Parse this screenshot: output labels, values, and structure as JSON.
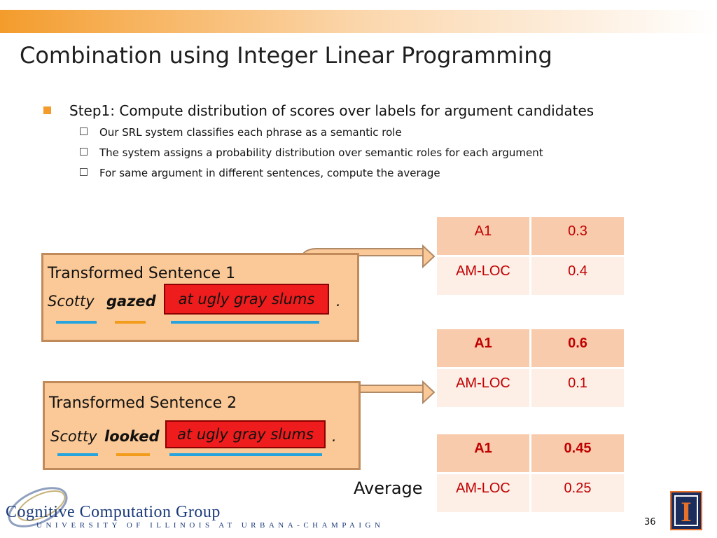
{
  "title": "Combination using Integer Linear Programming",
  "main_bullet": "Step1: Compute distribution of scores over labels for argument candidates",
  "sub_bullets": [
    "Our SRL system classifies each phrase as a semantic role",
    "The system assigns a probability distribution over semantic roles for each argument",
    "For same argument in different sentences, compute the average"
  ],
  "sentence1": {
    "title": "Transformed Sentence 1",
    "subject": "Scotty",
    "verb": "gazed",
    "argument": "at ugly gray slums",
    "period": "."
  },
  "sentence2": {
    "title": "Transformed Sentence 2",
    "subject": "Scotty",
    "verb": "looked",
    "argument": "at ugly gray slums",
    "period": "."
  },
  "tables": [
    {
      "rows": [
        {
          "label": "A1",
          "value": "0.3"
        },
        {
          "label": "AM-LOC",
          "value": "0.4"
        }
      ]
    },
    {
      "rows": [
        {
          "label": "A1",
          "value": "0.6"
        },
        {
          "label": "AM-LOC",
          "value": "0.1"
        }
      ]
    },
    {
      "rows": [
        {
          "label": "A1",
          "value": "0.45"
        },
        {
          "label": "AM-LOC",
          "value": "0.25"
        }
      ]
    }
  ],
  "average_label": "Average",
  "logo": {
    "name": "Cognitive Computation Group",
    "university": "UNIVERSITY OF ILLINOIS AT URBANA-CHAMPAIGN",
    "emblem": "I"
  },
  "page_number": "36",
  "colors": {
    "accent": "#f39c2c",
    "box_fill": "#fbc997",
    "highlight": "#ee1c1c",
    "table_text": "#c00000",
    "underline_blue": "#27a4dd",
    "underline_orange": "#f39c1c"
  }
}
